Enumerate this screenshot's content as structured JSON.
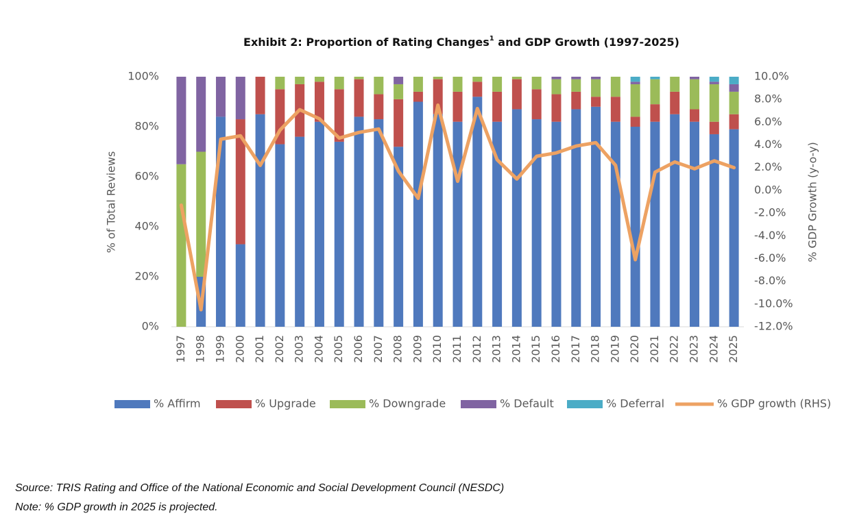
{
  "chart_data": {
    "type": "bar",
    "stacked": true,
    "title": [
      "Exhibit 2: Proportion of Rating Changes",
      "1",
      " and GDP Growth (1997-2025)"
    ],
    "ylabel": "% of Total Reviews",
    "y2label": "% GDP Growth (y-o-y)",
    "categories": [
      "1997",
      "1998",
      "1999",
      "2000",
      "2001",
      "2002",
      "2003",
      "2004",
      "2005",
      "2006",
      "2007",
      "2008",
      "2009",
      "2010",
      "2011",
      "2012",
      "2013",
      "2014",
      "2015",
      "2016",
      "2017",
      "2018",
      "2019",
      "2020",
      "2021",
      "2022",
      "2023",
      "2024",
      "2025"
    ],
    "series": [
      {
        "name": "% Affirm",
        "color": "#4f79bd",
        "values": [
          0,
          20,
          84,
          33,
          85,
          73,
          76,
          82,
          74,
          84,
          83,
          72,
          90,
          85,
          82,
          92,
          82,
          87,
          83,
          82,
          87,
          88,
          82,
          80,
          82,
          85,
          82,
          77,
          79
        ]
      },
      {
        "name": "% Upgrade",
        "color": "#bf504d",
        "values": [
          0,
          0,
          0,
          50,
          15,
          22,
          21,
          16,
          21,
          15,
          10,
          19,
          4,
          14,
          12,
          6,
          12,
          12,
          12,
          11,
          7,
          4,
          10,
          4,
          7,
          9,
          5,
          5,
          6
        ]
      },
      {
        "name": "% Downgrade",
        "color": "#9bbb59",
        "values": [
          65,
          50,
          0,
          0,
          0,
          5,
          3,
          2,
          5,
          1,
          7,
          6,
          6,
          1,
          6,
          2,
          6,
          1,
          5,
          6,
          5,
          7,
          8,
          13,
          10,
          6,
          12,
          15,
          9
        ]
      },
      {
        "name": "% Default",
        "color": "#8064a2",
        "values": [
          35,
          30,
          16,
          17,
          0,
          0,
          0,
          0,
          0,
          0,
          0,
          3,
          0,
          0,
          0,
          0,
          0,
          0,
          0,
          1,
          1,
          1,
          0,
          1,
          0,
          0,
          1,
          1,
          3
        ]
      },
      {
        "name": "% Deferral",
        "color": "#4bacc6",
        "values": [
          0,
          0,
          0,
          0,
          0,
          0,
          0,
          0,
          0,
          0,
          0,
          0,
          0,
          0,
          0,
          0,
          0,
          0,
          0,
          0,
          0,
          0,
          0,
          2,
          1,
          0,
          0,
          2,
          3
        ]
      },
      {
        "name": "% GDP growth (RHS)",
        "color": "#eda263",
        "type": "line",
        "axis": "y2",
        "values": [
          -1.3,
          -10.5,
          4.5,
          4.8,
          2.2,
          5.3,
          7.1,
          6.3,
          4.6,
          5.1,
          5.4,
          1.7,
          -0.7,
          7.5,
          0.8,
          7.2,
          2.7,
          1.0,
          3.0,
          3.3,
          3.9,
          4.2,
          2.2,
          -6.1,
          1.6,
          2.5,
          1.9,
          2.6,
          2.0
        ]
      }
    ],
    "ylim": [
      0,
      100
    ],
    "yticks": [
      {
        "value": 0,
        "label": "0%"
      },
      {
        "value": 20,
        "label": "20%"
      },
      {
        "value": 40,
        "label": "40%"
      },
      {
        "value": 60,
        "label": "60%"
      },
      {
        "value": 80,
        "label": "80%"
      },
      {
        "value": 100,
        "label": "100%"
      }
    ],
    "y2lim": [
      -12,
      10
    ],
    "y2ticks": [
      {
        "value": -12,
        "label": "-12.0%"
      },
      {
        "value": -10,
        "label": "-10.0%"
      },
      {
        "value": -8,
        "label": "-8.0%"
      },
      {
        "value": -6,
        "label": "-6.0%"
      },
      {
        "value": -4,
        "label": "-4.0%"
      },
      {
        "value": -2,
        "label": "-2.0%"
      },
      {
        "value": 0,
        "label": "0.0%"
      },
      {
        "value": 2,
        "label": "2.0%"
      },
      {
        "value": 4,
        "label": "4.0%"
      },
      {
        "value": 6,
        "label": "6.0%"
      },
      {
        "value": 8,
        "label": "8.0%"
      },
      {
        "value": 10,
        "label": "10.0%"
      }
    ],
    "grid": false,
    "legend": "bottom",
    "source": "Source: TRIS Rating and Office of the National Economic and Social Development Council (NESDC)",
    "note": "Note: % GDP growth in 2025 is projected."
  }
}
